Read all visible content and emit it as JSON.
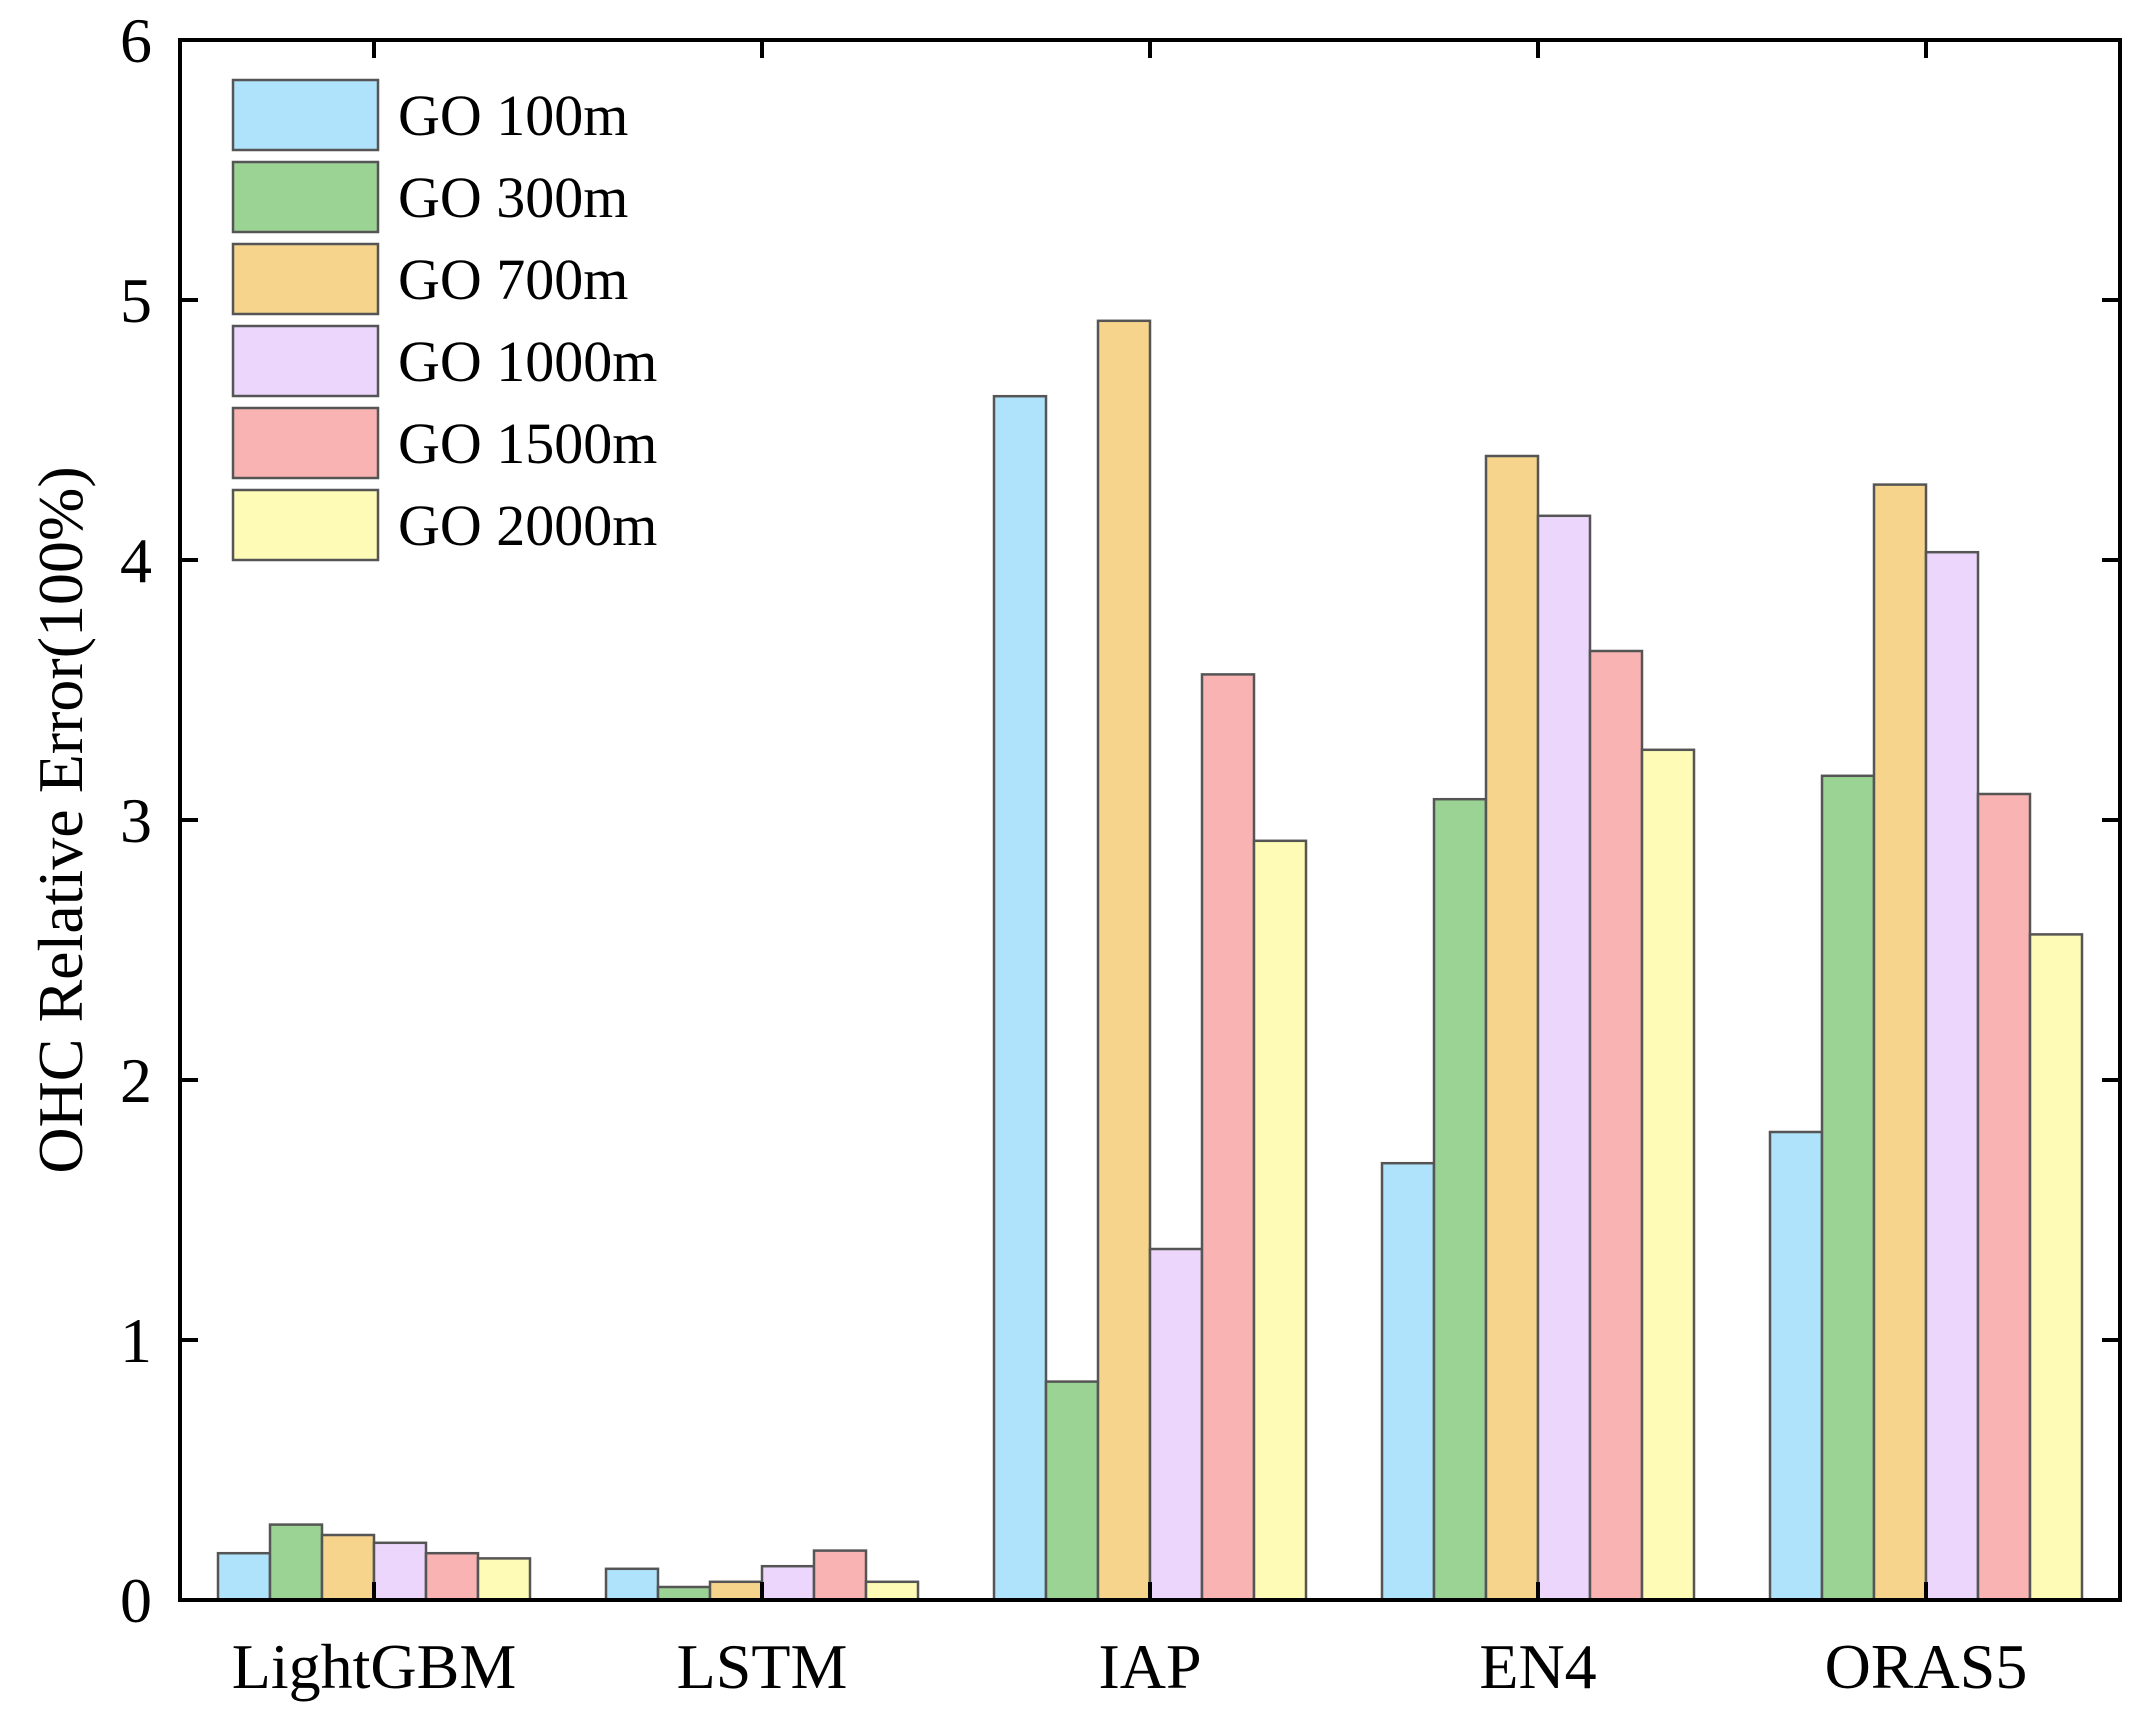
{
  "chart_data": {
    "type": "bar",
    "title": "",
    "xlabel": "",
    "ylabel": "OHC Relative Error(100%)",
    "ylim": [
      0,
      6
    ],
    "yticks": [
      0,
      1,
      2,
      3,
      4,
      5,
      6
    ],
    "ytick_labels": [
      "0",
      "1",
      "2",
      "3",
      "4",
      "5",
      "6"
    ],
    "categories": [
      "LightGBM",
      "LSTM",
      "IAP",
      "EN4",
      "ORAS5"
    ],
    "legend_position": "top-left",
    "grid": false,
    "series": [
      {
        "name": "GO 100m",
        "color": "#aee3fb",
        "values": [
          0.18,
          0.12,
          4.63,
          1.68,
          1.8
        ]
      },
      {
        "name": "GO 300m",
        "color": "#9bd394",
        "values": [
          0.29,
          0.05,
          0.84,
          3.08,
          3.17
        ]
      },
      {
        "name": "GO 700m",
        "color": "#f6d48c",
        "values": [
          0.25,
          0.07,
          4.92,
          4.4,
          4.29
        ]
      },
      {
        "name": "GO 1000m",
        "color": "#ecd6fb",
        "values": [
          0.22,
          0.13,
          1.35,
          4.17,
          4.03
        ]
      },
      {
        "name": "GO 1500m",
        "color": "#f9b3b3",
        "values": [
          0.18,
          0.19,
          3.56,
          3.65,
          3.1
        ]
      },
      {
        "name": "GO 2000m",
        "color": "#fdfbb6",
        "values": [
          0.16,
          0.07,
          2.92,
          3.27,
          2.56
        ]
      }
    ]
  }
}
